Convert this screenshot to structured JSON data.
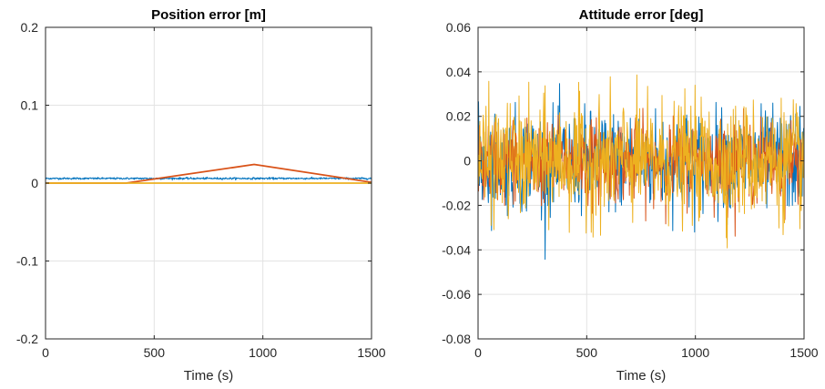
{
  "chart_data": [
    {
      "type": "line",
      "title": "Position error [m]",
      "xlabel": "Time (s)",
      "ylabel": "",
      "xlim": [
        0,
        1500
      ],
      "ylim": [
        -0.2,
        0.2
      ],
      "xticks": [
        0,
        500,
        1000,
        1500
      ],
      "xtick_labels": [
        "0",
        "500",
        "1000",
        "1500"
      ],
      "yticks": [
        -0.2,
        -0.1,
        0,
        0.1,
        0.2
      ],
      "ytick_labels": [
        "-0.2",
        "-0.1",
        "0",
        "0.1",
        "0.2"
      ],
      "grid": true,
      "series": [
        {
          "color": "#0072BD",
          "style": "noisy",
          "x": [
            0,
            1500
          ],
          "y": [
            0.006,
            0.006
          ],
          "noise": 0.0012
        },
        {
          "color": "#D95319",
          "style": "line",
          "x": [
            0,
            370,
            960,
            1500
          ],
          "y": [
            0.0,
            0.0,
            0.024,
            0.001
          ]
        },
        {
          "color": "#EDB120",
          "style": "line",
          "x": [
            0,
            1500
          ],
          "y": [
            0.0,
            0.0
          ]
        }
      ]
    },
    {
      "type": "line",
      "title": "Attitude error [deg]",
      "xlabel": "Time (s)",
      "ylabel": "",
      "xlim": [
        0,
        1500
      ],
      "ylim": [
        -0.08,
        0.06
      ],
      "xticks": [
        0,
        500,
        1000,
        1500
      ],
      "xtick_labels": [
        "0",
        "500",
        "1000",
        "1500"
      ],
      "yticks": [
        -0.08,
        -0.06,
        -0.04,
        -0.02,
        0,
        0.02,
        0.04,
        0.06
      ],
      "ytick_labels": [
        "-0.08",
        "-0.06",
        "-0.04",
        "-0.02",
        "0",
        "0.02",
        "0.04",
        "0.06"
      ],
      "grid": true,
      "series": [
        {
          "color": "#0072BD",
          "style": "noise",
          "mean": 0,
          "std": 0.011,
          "min": -0.048,
          "max": 0.046
        },
        {
          "color": "#D95319",
          "style": "noise",
          "mean": 0,
          "std": 0.009,
          "min": -0.047,
          "max": 0.036
        },
        {
          "color": "#EDB120",
          "style": "noise",
          "mean": 0,
          "std": 0.013,
          "min": -0.063,
          "max": 0.049
        }
      ]
    }
  ]
}
